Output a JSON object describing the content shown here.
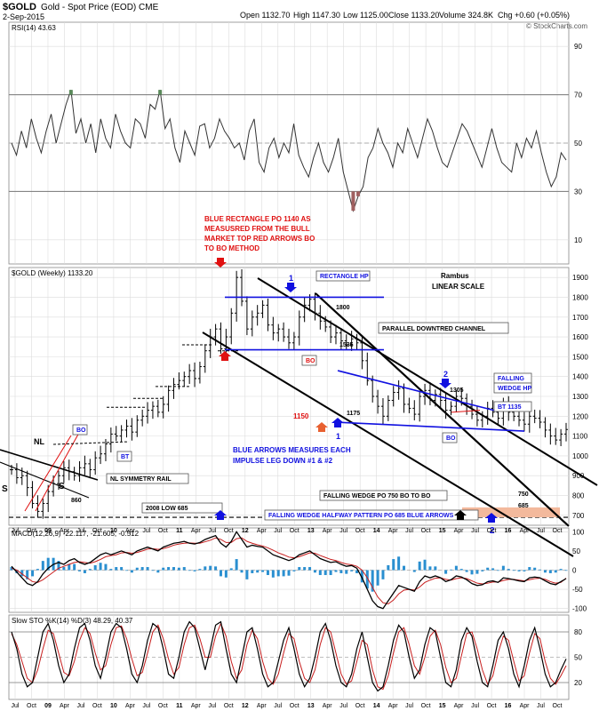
{
  "header": {
    "symbol": "$GOLD",
    "name": "Gold - Spot Price (EOD) CME",
    "date": "2-Sep-2015",
    "open": "Open 1132.70",
    "high": "High 1147.30",
    "low": "Low 1125.00",
    "close": "Close 1133.20",
    "volume": "Volume 324.8K",
    "chg": "Chg +0.60 (+0.05%)",
    "watermark": "© StockCharts.com"
  },
  "colors": {
    "blue": "#1010e0",
    "red": "#e01010",
    "grid": "#dcdcdc",
    "rsi": "#333333",
    "macd_hist": "#2a8fd0",
    "sto_signal": "#c81e1e",
    "fill_orange": "#f3b99c",
    "rsi_fill_green": "#5a8a5a",
    "rsi_fill_red": "#a06060"
  },
  "chart_data": [
    {
      "type": "line",
      "name": "rsi",
      "label": "RSI(14) 43.63",
      "ylim": [
        0,
        100
      ],
      "y_ticks": [
        10,
        30,
        50,
        70,
        90
      ],
      "ref_lines": [
        30,
        50,
        70
      ],
      "values": [
        50,
        45,
        55,
        48,
        60,
        52,
        46,
        55,
        62,
        50,
        58,
        66,
        72,
        54,
        60,
        50,
        58,
        46,
        60,
        52,
        48,
        62,
        55,
        50,
        48,
        60,
        58,
        52,
        66,
        64,
        72,
        56,
        60,
        48,
        42,
        55,
        50,
        45,
        57,
        58,
        48,
        52,
        60,
        55,
        52,
        48,
        50,
        43,
        55,
        60,
        42,
        38,
        48,
        52,
        44,
        50,
        46,
        58,
        45,
        40,
        36,
        44,
        50,
        42,
        38,
        44,
        52,
        38,
        30,
        22,
        28,
        32,
        44,
        48,
        56,
        50,
        46,
        40,
        50,
        46,
        56,
        50,
        44,
        52,
        60,
        55,
        48,
        42,
        40,
        46,
        52,
        58,
        55,
        50,
        45,
        40,
        48,
        56,
        48,
        42,
        40,
        38,
        50,
        44,
        52,
        48,
        55,
        46,
        38,
        32,
        36,
        46,
        43
      ]
    },
    {
      "type": "bar",
      "name": "price",
      "label": "$GOLD (Weekly) 1133.20",
      "scale": "linear",
      "ylim": [
        650,
        1950
      ],
      "y_ticks": [
        700,
        800,
        900,
        1000,
        1100,
        1200,
        1300,
        1400,
        1500,
        1600,
        1700,
        1800,
        1900
      ],
      "x_ticks": [
        "Jul",
        "Oct",
        "09",
        "Apr",
        "Jul",
        "Oct",
        "10",
        "Apr",
        "Jul",
        "Oct",
        "11",
        "Apr",
        "Jul",
        "Oct",
        "12",
        "Apr",
        "Jul",
        "Oct",
        "13",
        "Apr",
        "Jul",
        "Oct",
        "14",
        "Apr",
        "Jul",
        "Oct",
        "15",
        "Apr",
        "Jul",
        "Oct",
        "16",
        "Apr",
        "Jul",
        "Oct"
      ],
      "closes": [
        930,
        890,
        900,
        840,
        760,
        720,
        760,
        820,
        860,
        900,
        940,
        920,
        900,
        940,
        960,
        930,
        990,
        1010,
        1060,
        1110,
        1100,
        1130,
        1150,
        1120,
        1180,
        1200,
        1230,
        1250,
        1220,
        1260,
        1330,
        1360,
        1380,
        1400,
        1430,
        1390,
        1450,
        1530,
        1600,
        1640,
        1540,
        1600,
        1720,
        1900,
        1780,
        1640,
        1700,
        1720,
        1760,
        1660,
        1620,
        1640,
        1600,
        1570,
        1600,
        1700,
        1760,
        1790,
        1720,
        1680,
        1650,
        1600,
        1620,
        1580,
        1560,
        1590,
        1570,
        1480,
        1380,
        1300,
        1250,
        1200,
        1280,
        1320,
        1340,
        1260,
        1240,
        1210,
        1300,
        1330,
        1280,
        1310,
        1280,
        1230,
        1250,
        1300,
        1290,
        1250,
        1210,
        1180,
        1200,
        1240,
        1220,
        1190,
        1260,
        1220,
        1200,
        1180,
        1160,
        1200,
        1190,
        1170,
        1130,
        1100,
        1080,
        1110,
        1133
      ],
      "annotations": {
        "title_red": [
          "BLUE RECTANGLE PO 1140 AS",
          "MEASUSRED FROM THE BULL",
          "MARKET TOP RED ARROWS BO",
          "TO BO METHOD"
        ],
        "rambus": "Rambus",
        "linear": "LINEAR SCALE",
        "rectangle_hp": "RECTANGLE HP",
        "parallel_channel": "PARALLEL DOWNTRED CHANNEL",
        "falling_wedge_hp": [
          "FALLING",
          "WEDGE HP"
        ],
        "bt_1135": "BT 1135",
        "blue_arrows_text": [
          "BLUE ARROWS MEASURES EACH",
          "IMPULSE LEG DOWN #1 & #2"
        ],
        "wedge_po": "FALLING WEDGE PO 750 BO TO BO",
        "halfway": "FALLING WEDGE HALFWAY PATTERN PO 685 BLUE ARROWS",
        "low_2008": "2008 LOW 685",
        "nl_rail": "NL SYMMETRY RAIL",
        "v1800": "1800",
        "v1535": "1535",
        "v1305": "1305",
        "v1175": "1175",
        "v1150": "1150",
        "v860": "860",
        "v750": "750",
        "v685": "685",
        "bo": "BO",
        "bt": "BT",
        "nl": "NL",
        "s": "S",
        "one": "1",
        "two": "2"
      }
    },
    {
      "type": "line",
      "name": "macd",
      "label": "MACD(12,26,9) -22.117, -21.605, -0.512",
      "ylim": [
        -110,
        110
      ],
      "y_ticks": [
        -100,
        -50,
        0,
        50,
        100
      ],
      "macd": [
        10,
        -5,
        -20,
        -35,
        -40,
        -30,
        -10,
        5,
        15,
        20,
        15,
        25,
        30,
        20,
        15,
        20,
        30,
        40,
        45,
        40,
        45,
        50,
        45,
        40,
        50,
        55,
        60,
        55,
        50,
        60,
        65,
        70,
        72,
        75,
        70,
        68,
        72,
        80,
        85,
        90,
        70,
        60,
        75,
        100,
        80,
        60,
        65,
        62,
        60,
        50,
        40,
        35,
        30,
        25,
        30,
        40,
        45,
        50,
        40,
        30,
        25,
        20,
        22,
        15,
        10,
        12,
        5,
        -20,
        -50,
        -80,
        -95,
        -100,
        -80,
        -60,
        -40,
        -45,
        -50,
        -55,
        -30,
        -15,
        -20,
        -15,
        -20,
        -30,
        -25,
        -15,
        -18,
        -25,
        -35,
        -40,
        -38,
        -30,
        -28,
        -32,
        -20,
        -22,
        -25,
        -28,
        -30,
        -20,
        -18,
        -20,
        -28,
        -35,
        -38,
        -30,
        -22
      ],
      "signal": [
        5,
        0,
        -10,
        -20,
        -30,
        -32,
        -25,
        -15,
        -5,
        5,
        10,
        15,
        20,
        22,
        20,
        18,
        22,
        28,
        35,
        38,
        40,
        45,
        46,
        44,
        46,
        50,
        55,
        56,
        54,
        56,
        60,
        65,
        68,
        70,
        71,
        70,
        70,
        74,
        78,
        84,
        80,
        72,
        72,
        82,
        84,
        75,
        70,
        66,
        63,
        58,
        52,
        45,
        40,
        34,
        32,
        35,
        40,
        45,
        44,
        38,
        33,
        28,
        25,
        20,
        16,
        14,
        10,
        0,
        -20,
        -45,
        -70,
        -85,
        -88,
        -78,
        -62,
        -52,
        -50,
        -52,
        -44,
        -32,
        -26,
        -21,
        -20,
        -24,
        -26,
        -22,
        -20,
        -22,
        -28,
        -34,
        -36,
        -34,
        -31,
        -31,
        -27,
        -24,
        -24,
        -26,
        -28,
        -25,
        -22,
        -21,
        -24,
        -30,
        -34,
        -32,
        -21
      ]
    },
    {
      "type": "line",
      "name": "stochastic",
      "label": "Slow STO %K(14) %D(3) 48.29, 40.37",
      "ylim": [
        0,
        100
      ],
      "y_ticks": [
        20,
        50,
        80
      ],
      "k": [
        80,
        60,
        30,
        15,
        20,
        50,
        80,
        90,
        70,
        40,
        20,
        30,
        60,
        85,
        90,
        70,
        40,
        25,
        50,
        80,
        90,
        85,
        60,
        30,
        20,
        40,
        70,
        90,
        85,
        60,
        30,
        25,
        50,
        80,
        92,
        85,
        60,
        35,
        60,
        88,
        92,
        60,
        30,
        20,
        50,
        80,
        85,
        60,
        30,
        15,
        20,
        45,
        70,
        85,
        60,
        30,
        15,
        25,
        50,
        80,
        90,
        70,
        40,
        20,
        15,
        30,
        60,
        80,
        50,
        20,
        10,
        15,
        40,
        70,
        88,
        80,
        50,
        25,
        35,
        65,
        85,
        80,
        50,
        20,
        15,
        35,
        70,
        85,
        75,
        45,
        20,
        15,
        40,
        70,
        80,
        60,
        30,
        15,
        40,
        70,
        85,
        60,
        30,
        15,
        20,
        35,
        48
      ],
      "d": [
        78,
        65,
        45,
        25,
        20,
        35,
        60,
        82,
        78,
        55,
        32,
        28,
        45,
        70,
        85,
        78,
        55,
        35,
        40,
        65,
        85,
        87,
        72,
        48,
        28,
        32,
        55,
        80,
        88,
        72,
        48,
        30,
        38,
        65,
        85,
        88,
        72,
        50,
        50,
        75,
        90,
        75,
        45,
        25,
        35,
        65,
        82,
        72,
        45,
        25,
        18,
        30,
        55,
        78,
        72,
        45,
        25,
        20,
        35,
        65,
        85,
        80,
        55,
        30,
        18,
        22,
        45,
        70,
        65,
        35,
        15,
        12,
        28,
        55,
        80,
        85,
        65,
        40,
        30,
        50,
        75,
        82,
        65,
        38,
        20,
        25,
        52,
        78,
        80,
        60,
        35,
        18,
        28,
        55,
        75,
        70,
        45,
        22,
        28,
        55,
        78,
        72,
        45,
        25,
        18,
        28,
        40
      ]
    }
  ]
}
